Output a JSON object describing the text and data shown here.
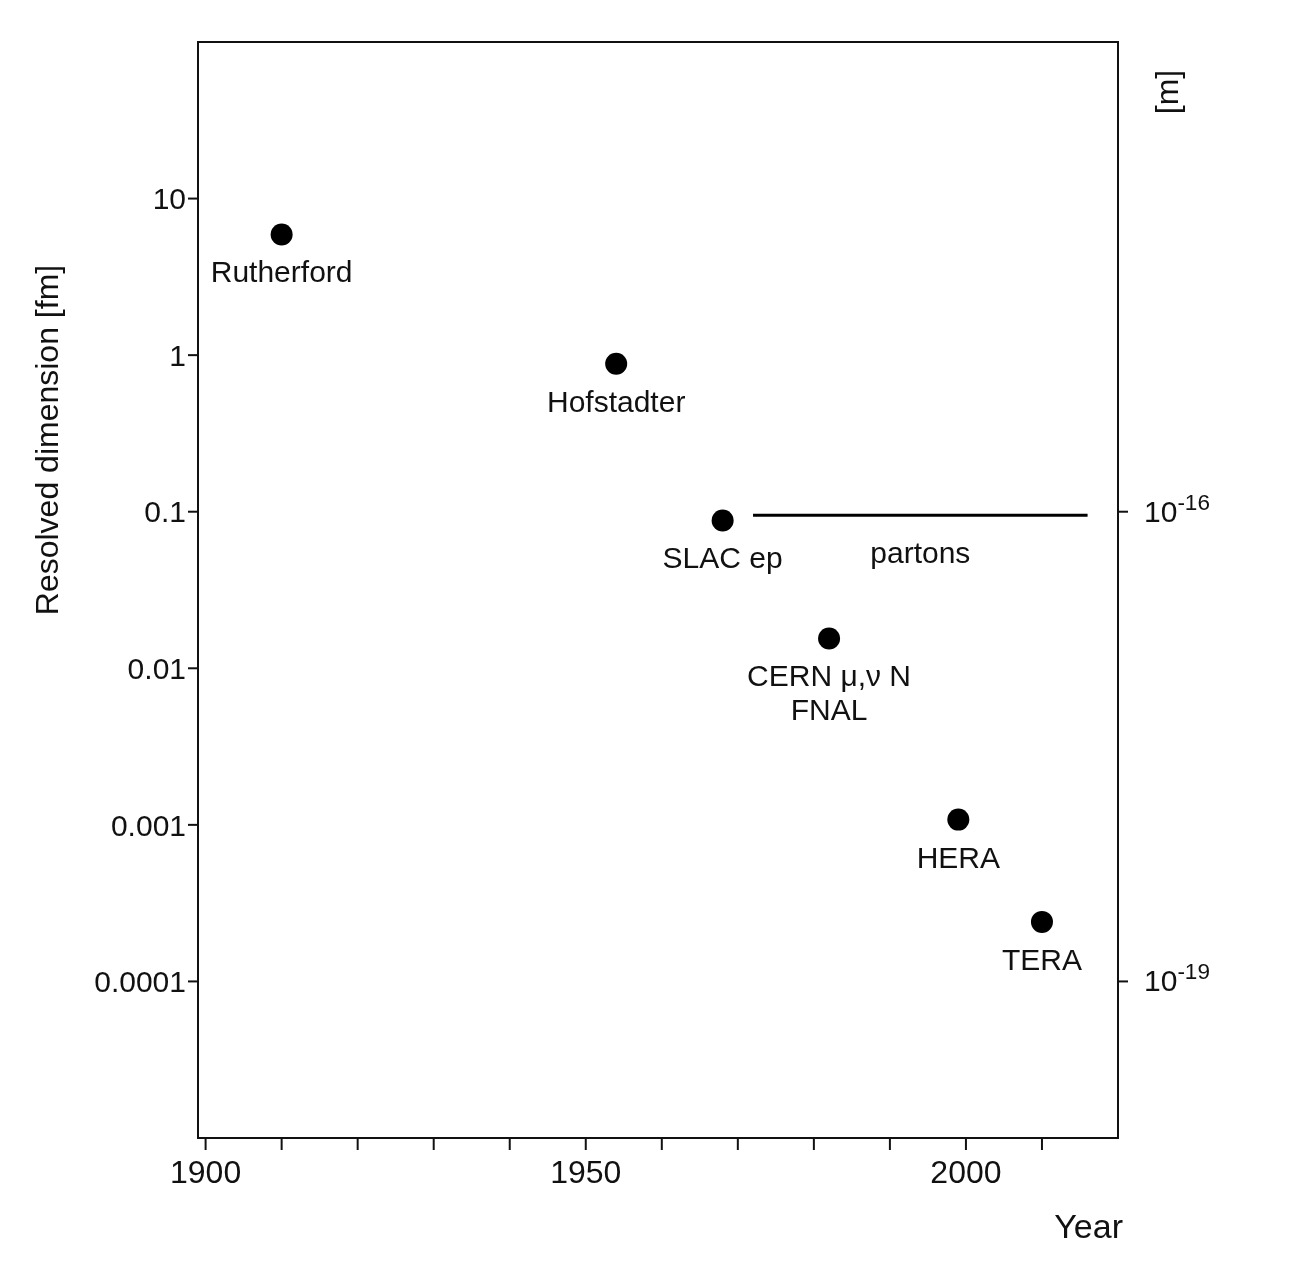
{
  "chart_data": {
    "type": "scatter",
    "xlabel": "Year",
    "ylabel": "Resolved dimension [fm]",
    "y2label": "[m]",
    "x": [
      1910,
      1954,
      1968,
      1982,
      1999,
      2010
    ],
    "series": [
      {
        "color": "#000000",
        "marker": "circle",
        "values": [
          5.9,
          0.88,
          0.088,
          0.0155,
          0.00108,
          0.00024
        ]
      },
      {
        "type": "line",
        "color": "#000000",
        "marker": "none",
        "x": [
          1972,
          2016
        ],
        "values": [
          0.095,
          0.095
        ]
      }
    ],
    "xlim": [
      1899,
      2020
    ],
    "xticks": [
      1900,
      {
        "value": 1910,
        "label": null
      },
      {
        "value": 1920,
        "label": null
      },
      {
        "value": 1930,
        "label": null
      },
      {
        "value": 1940,
        "label": null
      },
      1950,
      {
        "value": 1960,
        "label": null
      },
      {
        "value": 1970,
        "label": null
      },
      {
        "value": 1980,
        "label": null
      },
      {
        "value": 1990,
        "label": null
      },
      2000,
      {
        "value": 2010,
        "label": null
      }
    ],
    "ylim": [
      1e-05,
      100
    ],
    "yticks": [
      0.0001,
      0.001,
      0.01,
      0.1,
      1,
      10
    ],
    "y2lim": [
      1e-20,
      1e-13
    ],
    "y2ticks": [
      {
        "value": 1e-16,
        "label": "10$^{-16}$"
      },
      {
        "value": 1e-19,
        "label": "10$^{-19}$"
      }
    ],
    "log": "y",
    "grid": false,
    "annotations": [
      {
        "text": "Rutherford",
        "x": 1910,
        "y": 5.9
      },
      {
        "text": "Hofstadter",
        "x": 1954,
        "y": 0.88
      },
      {
        "text": "SLAC ep",
        "x": 1968,
        "y": 0.088
      },
      {
        "text": "partons",
        "x": 1994,
        "y": 0.095
      },
      {
        "text": "CERN μ,ν N",
        "x": 1982,
        "y": 0.0155
      },
      {
        "text": "FNAL",
        "x": 1982,
        "y": 0.0155
      },
      {
        "text": "HERA",
        "x": 1999,
        "y": 0.00108
      },
      {
        "text": "TERA",
        "x": 2010,
        "y": 0.00024
      }
    ]
  }
}
